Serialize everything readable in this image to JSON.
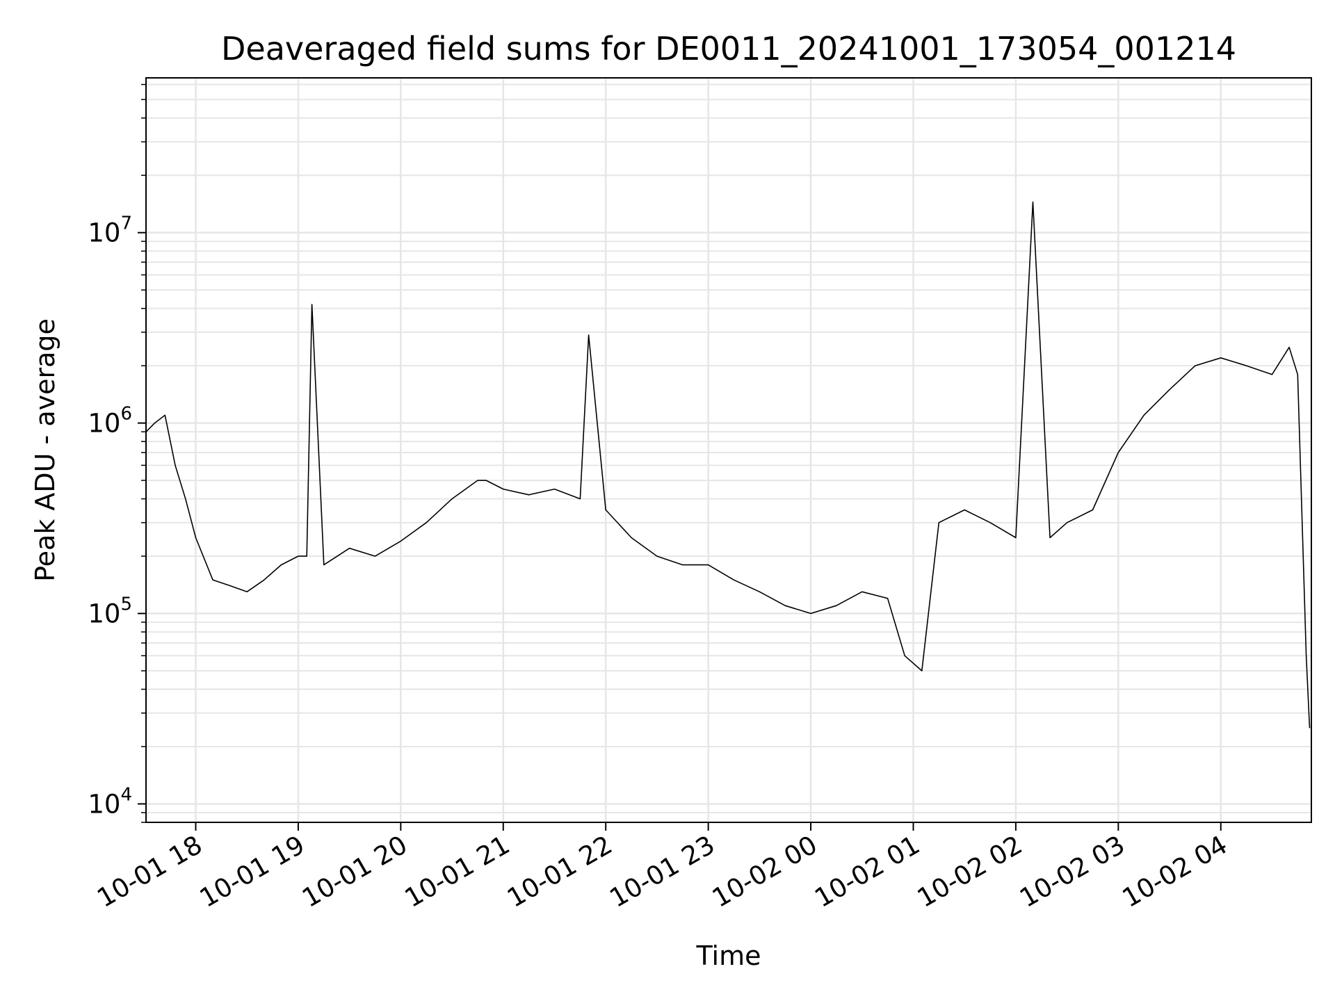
{
  "chart_data": {
    "type": "line",
    "title": "Deaveraged field sums for DE0011_20241001_173054_001214",
    "xlabel": "Time",
    "ylabel": "Peak ADU - average",
    "yscale": "log",
    "grid": true,
    "legend": "none",
    "line_color": "#000000",
    "grid_color": "#e6e6e6",
    "xlim": [
      "2024-10-01 17:30:54",
      "2024-10-02 04:53:00"
    ],
    "ylim": [
      8000,
      65000000
    ],
    "x_ticks": [
      {
        "value": "2024-10-01 18:00",
        "label": "10-01 18"
      },
      {
        "value": "2024-10-01 19:00",
        "label": "10-01 19"
      },
      {
        "value": "2024-10-01 20:00",
        "label": "10-01 20"
      },
      {
        "value": "2024-10-01 21:00",
        "label": "10-01 21"
      },
      {
        "value": "2024-10-01 22:00",
        "label": "10-01 22"
      },
      {
        "value": "2024-10-01 23:00",
        "label": "10-01 23"
      },
      {
        "value": "2024-10-02 00:00",
        "label": "10-02 00"
      },
      {
        "value": "2024-10-02 01:00",
        "label": "10-02 01"
      },
      {
        "value": "2024-10-02 02:00",
        "label": "10-02 02"
      },
      {
        "value": "2024-10-02 03:00",
        "label": "10-02 03"
      },
      {
        "value": "2024-10-02 04:00",
        "label": "10-02 04"
      }
    ],
    "y_ticks": [
      {
        "value": 10000,
        "base": "10",
        "exp": "4"
      },
      {
        "value": 100000,
        "base": "10",
        "exp": "5"
      },
      {
        "value": 1000000,
        "base": "10",
        "exp": "6"
      },
      {
        "value": 10000000,
        "base": "10",
        "exp": "7"
      }
    ],
    "series": [
      {
        "x": [
          "2024-10-01 17:31",
          "2024-10-01 17:36",
          "2024-10-01 17:42",
          "2024-10-01 17:48",
          "2024-10-01 17:54",
          "2024-10-01 18:00",
          "2024-10-01 18:10",
          "2024-10-01 18:20",
          "2024-10-01 18:30",
          "2024-10-01 18:40",
          "2024-10-01 18:50",
          "2024-10-01 19:00",
          "2024-10-01 19:05",
          "2024-10-01 19:08",
          "2024-10-01 19:15",
          "2024-10-01 19:30",
          "2024-10-01 19:45",
          "2024-10-01 20:00",
          "2024-10-01 20:15",
          "2024-10-01 20:30",
          "2024-10-01 20:45",
          "2024-10-01 20:50",
          "2024-10-01 21:00",
          "2024-10-01 21:15",
          "2024-10-01 21:30",
          "2024-10-01 21:45",
          "2024-10-01 21:50",
          "2024-10-01 22:00",
          "2024-10-01 22:15",
          "2024-10-01 22:30",
          "2024-10-01 22:45",
          "2024-10-01 23:00",
          "2024-10-01 23:15",
          "2024-10-01 23:30",
          "2024-10-01 23:45",
          "2024-10-02 00:00",
          "2024-10-02 00:15",
          "2024-10-02 00:30",
          "2024-10-02 00:45",
          "2024-10-02 00:55",
          "2024-10-02 01:05",
          "2024-10-02 01:15",
          "2024-10-02 01:30",
          "2024-10-02 01:45",
          "2024-10-02 02:00",
          "2024-10-02 02:10",
          "2024-10-02 02:20",
          "2024-10-02 02:30",
          "2024-10-02 02:45",
          "2024-10-02 03:00",
          "2024-10-02 03:15",
          "2024-10-02 03:30",
          "2024-10-02 03:45",
          "2024-10-02 04:00",
          "2024-10-02 04:15",
          "2024-10-02 04:30",
          "2024-10-02 04:40",
          "2024-10-02 04:45",
          "2024-10-02 04:50",
          "2024-10-02 04:52"
        ],
        "y": [
          900000,
          1000000,
          1100000,
          600000,
          400000,
          250000,
          150000,
          140000,
          130000,
          150000,
          180000,
          200000,
          200000,
          4200000,
          180000,
          220000,
          200000,
          240000,
          300000,
          400000,
          500000,
          500000,
          450000,
          420000,
          450000,
          400000,
          2900000,
          350000,
          250000,
          200000,
          180000,
          180000,
          150000,
          130000,
          110000,
          100000,
          110000,
          130000,
          120000,
          60000,
          50000,
          300000,
          350000,
          300000,
          250000,
          14500000,
          250000,
          300000,
          350000,
          700000,
          1100000,
          1500000,
          2000000,
          2200000,
          2000000,
          1800000,
          2500000,
          1800000,
          60000,
          25000
        ]
      }
    ]
  }
}
